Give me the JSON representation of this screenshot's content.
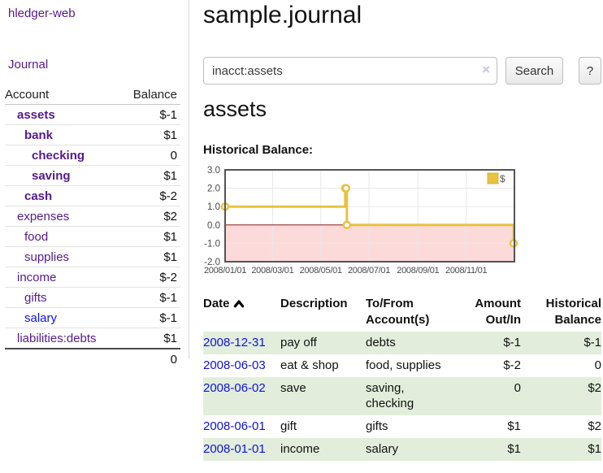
{
  "app": {
    "brand": "hledger-web"
  },
  "nav": {
    "journal": "Journal"
  },
  "sidebar": {
    "columns": {
      "account": "Account",
      "balance": "Balance"
    },
    "rows": [
      {
        "name": "assets",
        "balance": "$-1"
      },
      {
        "name": "bank",
        "balance": "$1"
      },
      {
        "name": "checking",
        "balance": "0"
      },
      {
        "name": "saving",
        "balance": "$1"
      },
      {
        "name": "cash",
        "balance": "$-2"
      },
      {
        "name": "expenses",
        "balance": "$2"
      },
      {
        "name": "food",
        "balance": "$1"
      },
      {
        "name": "supplies",
        "balance": "$1"
      },
      {
        "name": "income",
        "balance": "$-2"
      },
      {
        "name": "gifts",
        "balance": "$-1"
      },
      {
        "name": "salary",
        "balance": "$-1"
      },
      {
        "name": "liabilities:debts",
        "balance": "$1"
      }
    ],
    "total": "0"
  },
  "main": {
    "title": "sample.journal",
    "search": {
      "value": "inacct:assets",
      "clear_icon": "×",
      "search_button": "Search",
      "help_button": "?"
    },
    "account_heading": "assets",
    "chart_heading": "Historical Balance:"
  },
  "chart_data": {
    "type": "line",
    "style": "step-after",
    "title": "Historical Balance",
    "series": [
      {
        "name": "$",
        "color": "#e8c240",
        "points": [
          [
            "2008-01-01",
            1
          ],
          [
            "2008-06-01",
            2
          ],
          [
            "2008-06-02",
            2
          ],
          [
            "2008-06-03",
            0
          ],
          [
            "2008-12-31",
            -1
          ]
        ]
      }
    ],
    "x_ticks": [
      "2008/01/01",
      "2008/03/01",
      "2008/05/01",
      "2008/07/01",
      "2008/09/01",
      "2008/11/01"
    ],
    "y_ticks": [
      "3.0",
      "2.0",
      "1.0",
      "0.0",
      "-1.0",
      "-2.0"
    ],
    "xlim": [
      "2008-01-01",
      "2009-01-01"
    ],
    "ylim": [
      -2,
      3
    ],
    "grid": true,
    "legend": {
      "label": "$",
      "position": "top-right"
    },
    "negative_region_color": "#fcdada",
    "zero_line_color": "#8b1a1a",
    "border_color": "#545454",
    "tick_label_color": "#4a4a4a"
  },
  "register": {
    "headers": {
      "date": "Date",
      "description": "Description",
      "tofrom": "To/From Account(s)",
      "amount": "Amount Out/In",
      "balance": "Historical Balance"
    },
    "rows": [
      {
        "date": "2008-12-31",
        "description": "pay off",
        "accounts": "debts",
        "amount": "$-1",
        "balance": "$-1"
      },
      {
        "date": "2008-06-03",
        "description": "eat & shop",
        "accounts": "food, supplies",
        "amount": "$-2",
        "balance": "0"
      },
      {
        "date": "2008-06-02",
        "description": "save",
        "accounts": "saving, checking",
        "amount": "0",
        "balance": "$2"
      },
      {
        "date": "2008-06-01",
        "description": "gift",
        "accounts": "gifts",
        "amount": "$1",
        "balance": "$2"
      },
      {
        "date": "2008-01-01",
        "description": "income",
        "accounts": "salary",
        "amount": "$1",
        "balance": "$1"
      }
    ]
  }
}
